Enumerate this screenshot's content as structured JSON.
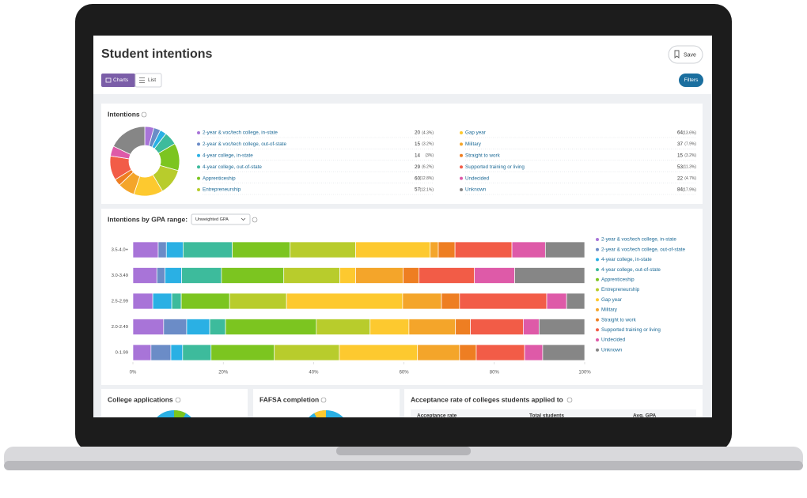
{
  "header": {
    "title": "Student intentions",
    "save": "Save",
    "tabs": [
      "Charts",
      "List"
    ],
    "filters": "Filters"
  },
  "intentions": {
    "type": "pie",
    "title": "Intentions",
    "categories": [
      "2-year & voc/tech college, in-state",
      "2-year & voc/tech college, out-of-state",
      "4-year college, in-state",
      "4-year college, out-of-state",
      "Apprenticeship",
      "Entrepreneurship",
      "Gap year",
      "Military",
      "Straight to work",
      "Supported training or living",
      "Undecided",
      "Unknown"
    ],
    "values": [
      20,
      15,
      14,
      29,
      60,
      57,
      64,
      37,
      15,
      53,
      22,
      84
    ],
    "value_labels": [
      "(4.3%)",
      "(3.2%)",
      "(3%)",
      "(6.2%)",
      "(12.8%)",
      "(12.1%)",
      "(13.6%)",
      "(7.9%)",
      "(3.2%)",
      "(11.3%)",
      "(4.7%)",
      "(17.9%)"
    ],
    "colors": [
      "#a874d8",
      "#6b8cc7",
      "#2ab0e4",
      "#3dbb9c",
      "#7cc520",
      "#b8cc2c",
      "#fdc92f",
      "#f4a52a",
      "#ee7e22",
      "#f25c47",
      "#de5aa8",
      "#868686"
    ]
  },
  "gpa_chart": {
    "type": "bar",
    "stacked": true,
    "orientation": "horizontal",
    "title": "Intentions by GPA range:",
    "dropdown": "Unweighted GPA",
    "categories": [
      "3.5-4.0+",
      "3.0-3.49",
      "2.5-2.99",
      "2.0-2.49",
      "0-1.99"
    ],
    "series": [
      {
        "name": "2-year & voc/tech college, in-state",
        "color": "#a874d8",
        "values": [
          5.6,
          5.3,
          4.4,
          6.8,
          4.0
        ]
      },
      {
        "name": "2-year & voc/tech college, out-of-state",
        "color": "#6b8cc7",
        "values": [
          1.8,
          1.8,
          0,
          5.1,
          4.4
        ]
      },
      {
        "name": "4-year college, in-state",
        "color": "#2ab0e4",
        "values": [
          3.7,
          3.7,
          4.2,
          5.1,
          2.6
        ]
      },
      {
        "name": "4-year college, out-of-state",
        "color": "#3dbb9c",
        "values": [
          10.9,
          8.8,
          2.1,
          3.5,
          6.3
        ]
      },
      {
        "name": "Apprenticeship",
        "color": "#7cc520",
        "values": [
          12.8,
          13.8,
          10.7,
          20.1,
          14.0
        ]
      },
      {
        "name": "Entrepreneurship",
        "color": "#b8cc2c",
        "values": [
          14.5,
          12.4,
          12.6,
          11.9,
          14.4
        ]
      },
      {
        "name": "Gap year",
        "color": "#fdc92f",
        "values": [
          16.5,
          3.5,
          25.7,
          8.6,
          17.3
        ]
      },
      {
        "name": "Military",
        "color": "#f4a52a",
        "values": [
          1.8,
          10.5,
          8.6,
          10.3,
          9.3
        ]
      },
      {
        "name": "Straight to work",
        "color": "#ee7e22",
        "values": [
          3.7,
          3.5,
          4.0,
          3.3,
          3.7
        ]
      },
      {
        "name": "Supported training or living",
        "color": "#f25c47",
        "values": [
          12.6,
          12.3,
          19.3,
          11.7,
          10.7
        ]
      },
      {
        "name": "Undecided",
        "color": "#de5aa8",
        "values": [
          7.4,
          8.9,
          4.4,
          3.5,
          4.0
        ]
      },
      {
        "name": "Unknown",
        "color": "#868686",
        "values": [
          8.7,
          15.5,
          4.0,
          10.1,
          9.3
        ]
      }
    ],
    "xlim": [
      0,
      100
    ],
    "xticks": [
      {
        "value": 0,
        "label": "0%"
      },
      {
        "value": 20,
        "label": "20%"
      },
      {
        "value": 40,
        "label": "40%"
      },
      {
        "value": 60,
        "label": "60%"
      },
      {
        "value": 80,
        "label": "80%"
      },
      {
        "value": 100,
        "label": "100%"
      }
    ],
    "legend": "right"
  },
  "panels": [
    {
      "title": "College applications"
    },
    {
      "title": "FAFSA completion"
    },
    {
      "title": "Acceptance rate of colleges students applied to",
      "columns": [
        "Acceptance rate",
        "Total students",
        "Avg. GPA"
      ]
    }
  ]
}
